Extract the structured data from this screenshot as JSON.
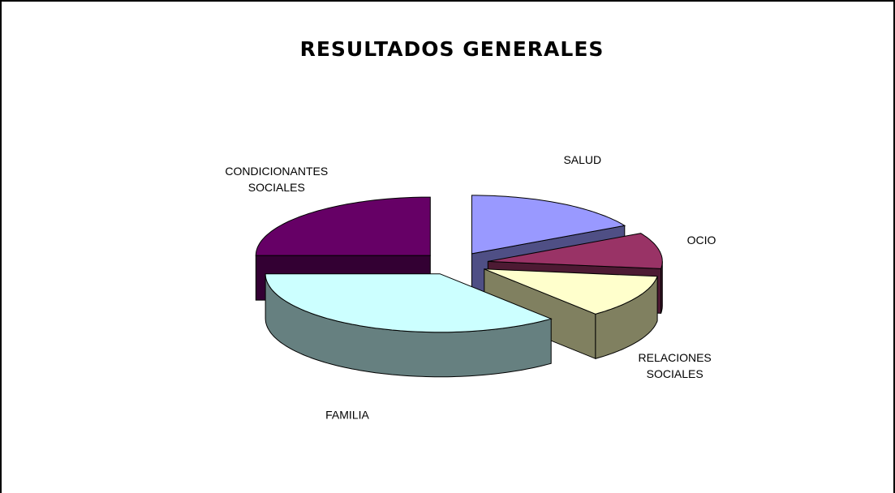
{
  "chart_data": {
    "type": "pie3d",
    "title": "RESULTADOS GENERALES",
    "categories": [
      "SALUD",
      "OCIO",
      "RELACIONES SOCIALES",
      "FAMILIA",
      "CONDICIONANTES SOCIALES"
    ],
    "values": [
      17,
      10,
      12,
      36,
      25
    ],
    "colors": [
      "#9999ff",
      "#993366",
      "#ffffcc",
      "#ccffff",
      "#660066"
    ],
    "side_colors": [
      "#4f4f85",
      "#4d1a33",
      "#808060",
      "#668080",
      "#330033"
    ]
  }
}
